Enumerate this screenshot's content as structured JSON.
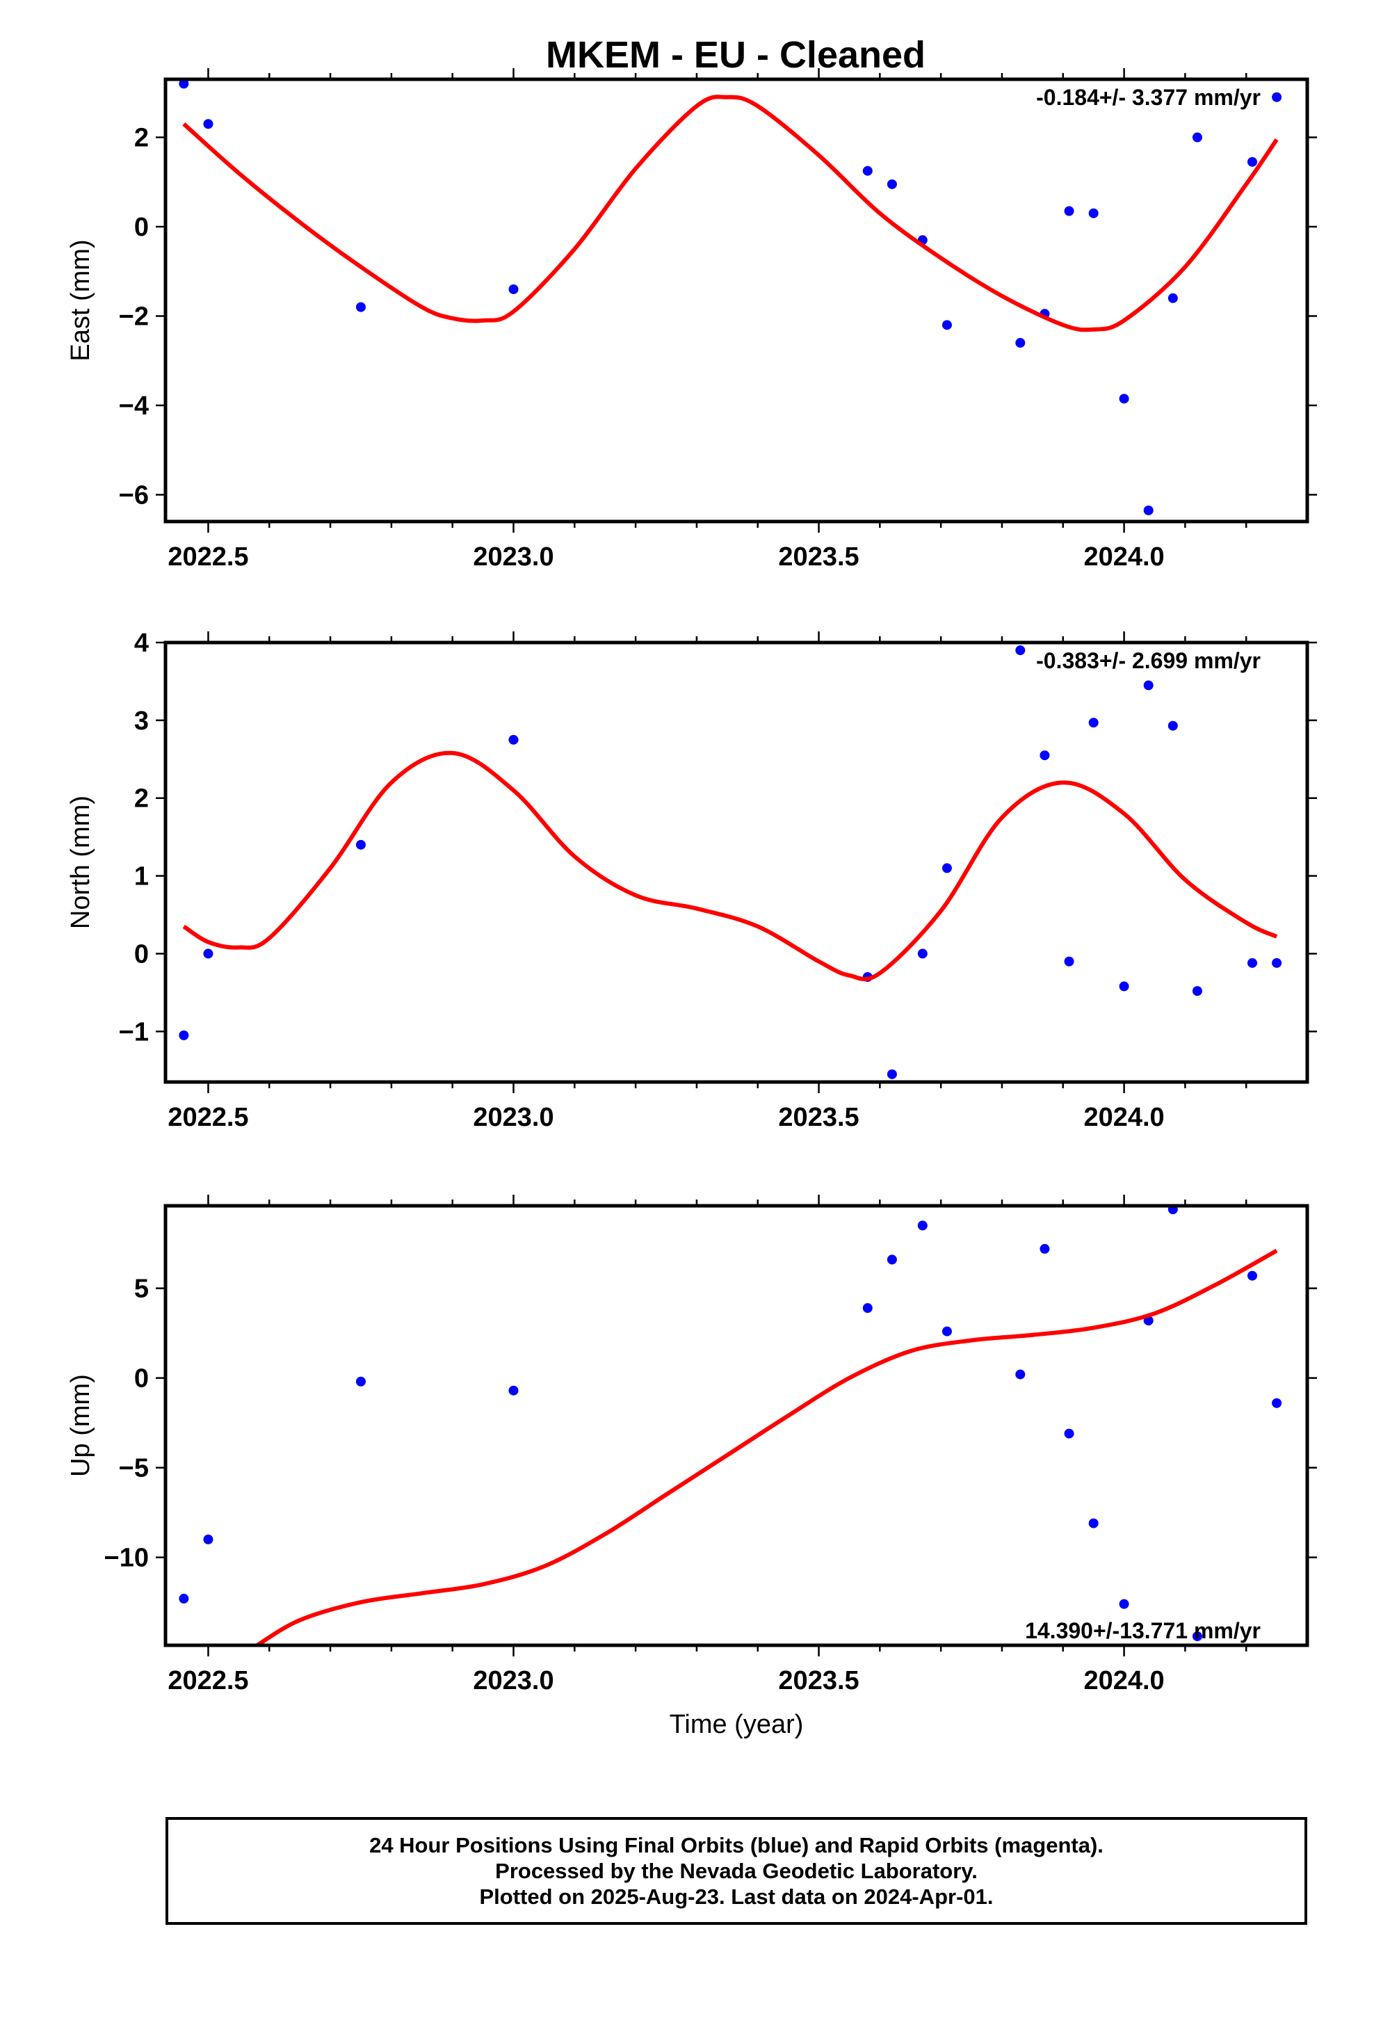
{
  "title": "MKEM  - EU - Cleaned",
  "footer": {
    "line1": "24 Hour Positions Using Final Orbits (blue) and Rapid Orbits (magenta).",
    "line2": "Processed by the Nevada Geodetic Laboratory.",
    "line3": "Plotted on 2025-Aug-23. Last data on 2024-Apr-01."
  },
  "colors": {
    "points": "#0000ff",
    "fit": "#ff0000",
    "frame": "#000000"
  },
  "chart_data": [
    {
      "type": "scatter",
      "ylabel": "East (mm)",
      "xlim": [
        2022.43,
        2024.3
      ],
      "ylim": [
        -6.6,
        3.3
      ],
      "xticks": [
        "2022.5",
        "2023.0",
        "2023.5",
        "2024.0"
      ],
      "yticks": [
        "−6",
        "−4",
        "−2",
        "0",
        "2"
      ],
      "rate_text": "-0.184+/- 3.377 mm/yr",
      "rate_position": "top-right",
      "points": {
        "x": [
          2022.46,
          2022.5,
          2022.75,
          2023.0,
          2023.58,
          2023.62,
          2023.67,
          2023.71,
          2023.83,
          2023.87,
          2023.91,
          2023.95,
          2024.0,
          2024.04,
          2024.08,
          2024.12,
          2024.21,
          2024.25
        ],
        "y": [
          3.2,
          2.3,
          -1.8,
          -1.4,
          1.25,
          0.95,
          -0.3,
          -2.2,
          -2.6,
          -1.95,
          0.35,
          0.3,
          -3.85,
          -6.35,
          -1.6,
          2.0,
          1.45,
          2.9
        ]
      },
      "fit": {
        "x": [
          2022.46,
          2022.55,
          2022.65,
          2022.75,
          2022.85,
          2022.9,
          2022.95,
          2023.0,
          2023.1,
          2023.2,
          2023.3,
          2023.35,
          2023.4,
          2023.5,
          2023.6,
          2023.7,
          2023.8,
          2023.9,
          2023.95,
          2024.0,
          2024.1,
          2024.2,
          2024.25
        ],
        "y": [
          2.3,
          1.2,
          0.1,
          -0.9,
          -1.8,
          -2.05,
          -2.1,
          -1.9,
          -0.5,
          1.3,
          2.7,
          2.9,
          2.7,
          1.6,
          0.3,
          -0.7,
          -1.55,
          -2.2,
          -2.3,
          -2.1,
          -0.9,
          0.95,
          1.95
        ]
      }
    },
    {
      "type": "scatter",
      "ylabel": "North (mm)",
      "xlim": [
        2022.43,
        2024.3
      ],
      "ylim": [
        -1.65,
        4.0
      ],
      "xticks": [
        "2022.5",
        "2023.0",
        "2023.5",
        "2024.0"
      ],
      "yticks": [
        "−1",
        "0",
        "1",
        "2",
        "3",
        "4"
      ],
      "rate_text": "-0.383+/- 2.699 mm/yr",
      "rate_position": "top-right",
      "points": {
        "x": [
          2022.46,
          2022.5,
          2022.75,
          2023.0,
          2023.58,
          2023.62,
          2023.67,
          2023.71,
          2023.83,
          2023.87,
          2023.91,
          2023.95,
          2024.0,
          2024.04,
          2024.08,
          2024.12,
          2024.21,
          2024.25
        ],
        "y": [
          -1.05,
          0.0,
          1.4,
          2.75,
          -0.3,
          -1.55,
          0.0,
          1.1,
          3.9,
          2.55,
          -0.1,
          2.97,
          -0.42,
          3.45,
          2.93,
          -0.48,
          -0.12,
          -0.12
        ]
      },
      "fit": {
        "x": [
          2022.46,
          2022.5,
          2022.55,
          2022.6,
          2022.7,
          2022.8,
          2022.9,
          2023.0,
          2023.1,
          2023.2,
          2023.3,
          2023.4,
          2023.5,
          2023.55,
          2023.6,
          2023.7,
          2023.8,
          2023.9,
          2024.0,
          2024.1,
          2024.2,
          2024.25
        ],
        "y": [
          0.35,
          0.15,
          0.08,
          0.2,
          1.1,
          2.2,
          2.58,
          2.1,
          1.25,
          0.75,
          0.58,
          0.35,
          -0.1,
          -0.28,
          -0.25,
          0.55,
          1.75,
          2.2,
          1.8,
          0.95,
          0.4,
          0.22
        ]
      }
    },
    {
      "type": "scatter",
      "ylabel": "Up (mm)",
      "xlabel": "Time (year)",
      "xlim": [
        2022.43,
        2024.3
      ],
      "ylim": [
        -14.9,
        9.6
      ],
      "xticks": [
        "2022.5",
        "2023.0",
        "2023.5",
        "2024.0"
      ],
      "yticks": [
        "−10",
        "−5",
        "0",
        "5"
      ],
      "rate_text": "14.390+/-13.771 mm/yr",
      "rate_position": "bottom-right",
      "points": {
        "x": [
          2022.46,
          2022.5,
          2022.75,
          2023.0,
          2023.58,
          2023.62,
          2023.67,
          2023.71,
          2023.83,
          2023.87,
          2023.91,
          2023.95,
          2024.0,
          2024.04,
          2024.08,
          2024.12,
          2024.21,
          2024.25
        ],
        "y": [
          -12.3,
          -9.0,
          -0.2,
          -0.7,
          3.9,
          6.6,
          8.5,
          2.6,
          0.2,
          7.2,
          -3.1,
          -8.1,
          -12.6,
          3.2,
          9.4,
          -14.4,
          5.7,
          -1.4
        ]
      },
      "fit": {
        "x": [
          2022.58,
          2022.65,
          2022.75,
          2022.85,
          2022.95,
          2023.05,
          2023.15,
          2023.25,
          2023.35,
          2023.45,
          2023.55,
          2023.65,
          2023.75,
          2023.85,
          2023.95,
          2024.05,
          2024.15,
          2024.25
        ],
        "y": [
          -14.9,
          -13.5,
          -12.5,
          -12.0,
          -11.5,
          -10.5,
          -8.7,
          -6.5,
          -4.3,
          -2.1,
          0.0,
          1.5,
          2.1,
          2.4,
          2.8,
          3.6,
          5.2,
          7.1
        ]
      }
    }
  ]
}
